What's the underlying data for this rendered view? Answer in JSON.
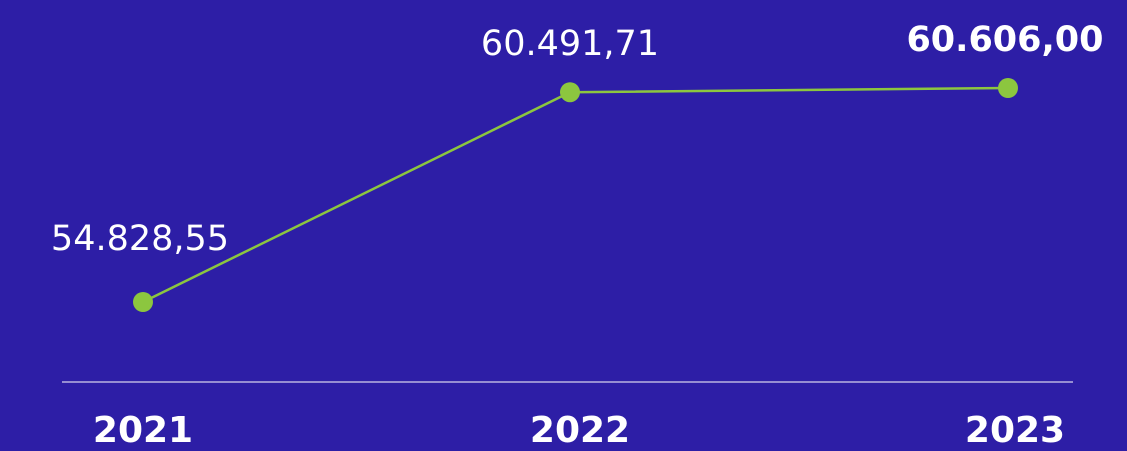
{
  "chart_data": {
    "type": "line",
    "categories": [
      "2021",
      "2022",
      "2023"
    ],
    "values": [
      54828.55,
      60491.71,
      60606.0
    ],
    "value_labels": [
      "54.828,55",
      "60.491,71",
      "60.606,00"
    ],
    "color": "#8cc63f"
  }
}
